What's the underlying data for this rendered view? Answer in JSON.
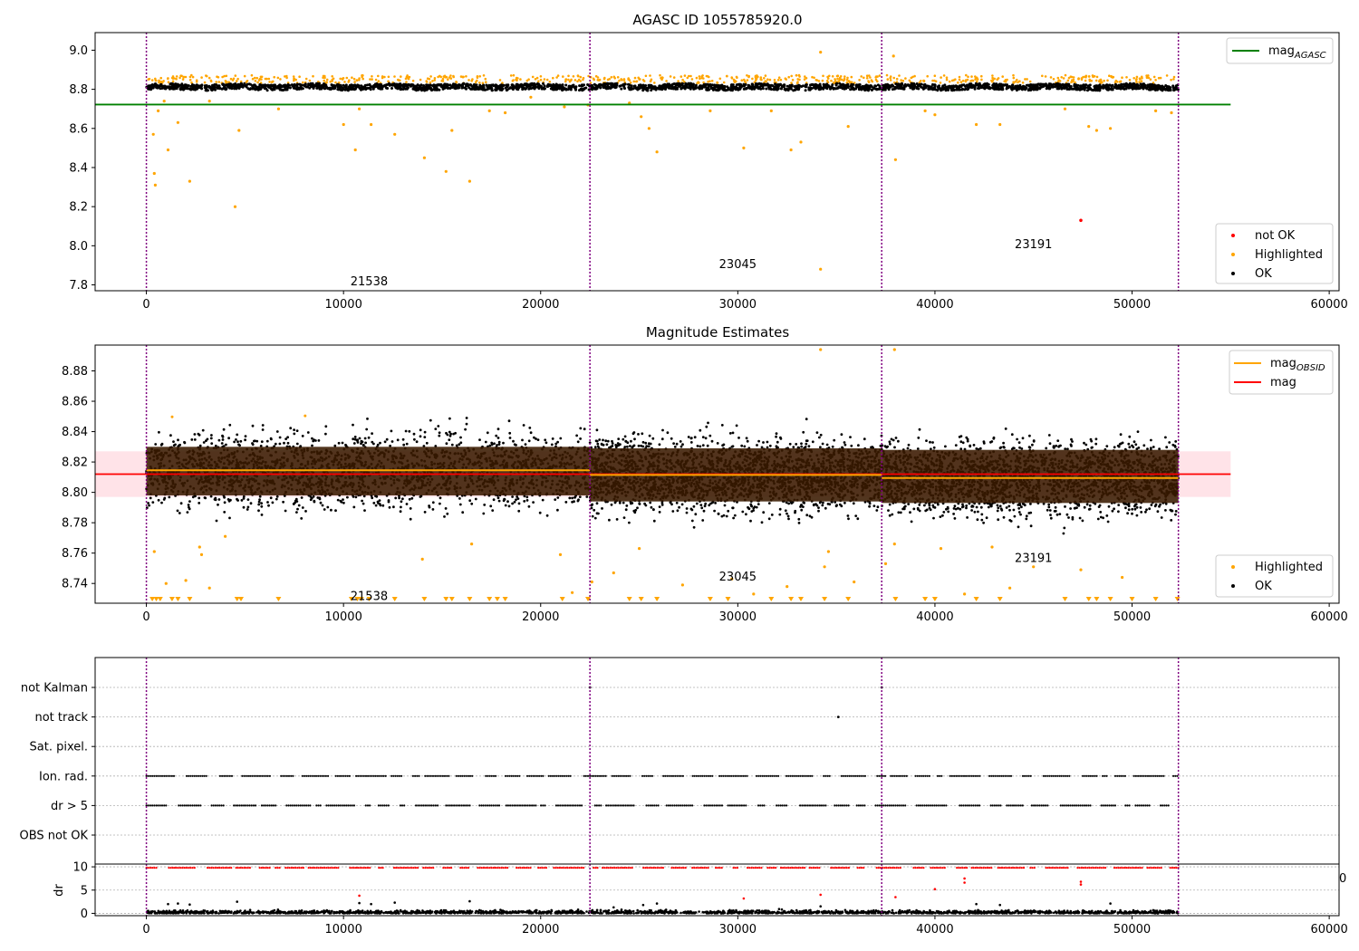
{
  "figure": {
    "title": "AGASC ID 1055785920.0"
  },
  "chart_data": [
    {
      "type": "scatter",
      "title": "AGASC ID 1055785920.0",
      "xlim": [
        -2600,
        60500
      ],
      "ylim": [
        7.77,
        9.09
      ],
      "xticks": [
        0,
        10000,
        20000,
        30000,
        40000,
        50000,
        60000
      ],
      "yticks": [
        7.8,
        8.0,
        8.2,
        8.4,
        8.6,
        8.8,
        9.0
      ],
      "ytick_labels": [
        "7.8",
        "8.0",
        "8.2",
        "8.4",
        "8.6",
        "8.8",
        "9.0"
      ],
      "obsid_boundaries": [
        0,
        22500,
        37300,
        52350
      ],
      "obsid_labels": [
        {
          "text": "21538",
          "x": 11300,
          "y": 7.82
        },
        {
          "text": "23045",
          "x": 30000,
          "y": 7.91
        },
        {
          "text": "23191",
          "x": 45000,
          "y": 8.01
        }
      ],
      "reference_lines": [
        {
          "name": "mag",
          "name_sub": "AGASC",
          "y": 8.722,
          "x": [
            -2600,
            55000
          ],
          "color": "#008000"
        }
      ],
      "ok_band": {
        "center": 8.812,
        "spread": 0.012
      },
      "highlighted_outliers": [
        [
          350,
          8.57
        ],
        [
          400,
          8.37
        ],
        [
          450,
          8.31
        ],
        [
          600,
          8.69
        ],
        [
          900,
          8.74
        ],
        [
          1100,
          8.49
        ],
        [
          1600,
          8.63
        ],
        [
          2200,
          8.33
        ],
        [
          3200,
          8.74
        ],
        [
          4500,
          8.2
        ],
        [
          4700,
          8.59
        ],
        [
          6700,
          8.7
        ],
        [
          10000,
          8.62
        ],
        [
          10600,
          8.49
        ],
        [
          10800,
          8.7
        ],
        [
          11400,
          8.62
        ],
        [
          12600,
          8.57
        ],
        [
          14100,
          8.45
        ],
        [
          15200,
          8.38
        ],
        [
          15500,
          8.59
        ],
        [
          16400,
          8.33
        ],
        [
          17400,
          8.69
        ],
        [
          18200,
          8.68
        ],
        [
          19500,
          8.76
        ],
        [
          21200,
          8.71
        ],
        [
          22400,
          8.72
        ],
        [
          24500,
          8.73
        ],
        [
          25100,
          8.66
        ],
        [
          25500,
          8.6
        ],
        [
          25900,
          8.48
        ],
        [
          28600,
          8.69
        ],
        [
          30300,
          8.5
        ],
        [
          31700,
          8.69
        ],
        [
          32700,
          8.49
        ],
        [
          33200,
          8.53
        ],
        [
          34200,
          7.88
        ],
        [
          34200,
          8.99
        ],
        [
          35600,
          8.61
        ],
        [
          37900,
          8.97
        ],
        [
          38000,
          8.44
        ],
        [
          39500,
          8.69
        ],
        [
          40000,
          8.67
        ],
        [
          42100,
          8.62
        ],
        [
          43300,
          8.62
        ],
        [
          46600,
          8.7
        ],
        [
          47800,
          8.61
        ],
        [
          48200,
          8.59
        ],
        [
          48900,
          8.6
        ],
        [
          51200,
          8.69
        ],
        [
          52000,
          8.68
        ]
      ],
      "not_ok_points": [
        [
          47400,
          8.13
        ]
      ],
      "legends": [
        {
          "position": "top-right",
          "items": [
            {
              "label": "mag",
              "sub": "AGASC",
              "kind": "line",
              "color": "#008000"
            }
          ]
        },
        {
          "position": "lower-right",
          "items": [
            {
              "label": "not OK",
              "kind": "dot",
              "color": "#ff0000"
            },
            {
              "label": "Highlighted",
              "kind": "dot",
              "color": "#ffa500"
            },
            {
              "label": "OK",
              "kind": "dot",
              "color": "#000000"
            }
          ]
        }
      ]
    },
    {
      "type": "scatter",
      "title": "Magnitude Estimates",
      "xlim": [
        -2600,
        60500
      ],
      "ylim": [
        8.727,
        8.897
      ],
      "xticks": [
        0,
        10000,
        20000,
        30000,
        40000,
        50000,
        60000
      ],
      "yticks": [
        8.74,
        8.76,
        8.78,
        8.8,
        8.82,
        8.84,
        8.86,
        8.88
      ],
      "ytick_labels": [
        "8.74",
        "8.76",
        "8.78",
        "8.80",
        "8.82",
        "8.84",
        "8.86",
        "8.88"
      ],
      "obsid_boundaries": [
        0,
        22500,
        37300,
        52350
      ],
      "obsid_labels": [
        {
          "text": "21538",
          "x": 11300,
          "y": 8.732
        },
        {
          "text": "23045",
          "x": 30000,
          "y": 8.745
        },
        {
          "text": "23191",
          "x": 45000,
          "y": 8.757
        }
      ],
      "mag_line": {
        "name": "mag",
        "y": 8.812,
        "x": [
          -2600,
          55000
        ],
        "color": "#ff0000",
        "band": [
          8.797,
          8.827
        ]
      },
      "obsid_segments": [
        {
          "x": [
            0,
            22500
          ],
          "mag_obsid": 8.8145,
          "band": [
            8.798,
            8.83
          ]
        },
        {
          "x": [
            22500,
            37300
          ],
          "mag_obsid": 8.8115,
          "band": [
            8.794,
            8.829
          ]
        },
        {
          "x": [
            37300,
            52350
          ],
          "mag_obsid": 8.8095,
          "band": [
            8.793,
            8.828
          ]
        }
      ],
      "highlighted_outliers": [
        [
          400,
          8.761
        ],
        [
          1000,
          8.74
        ],
        [
          2000,
          8.742
        ],
        [
          2700,
          8.764
        ],
        [
          2800,
          8.759
        ],
        [
          3200,
          8.737
        ],
        [
          4000,
          8.771
        ],
        [
          14000,
          8.756
        ],
        [
          16500,
          8.766
        ],
        [
          21000,
          8.759
        ],
        [
          21600,
          8.734
        ],
        [
          22600,
          8.741
        ],
        [
          23700,
          8.747
        ],
        [
          25000,
          8.763
        ],
        [
          27200,
          8.739
        ],
        [
          29700,
          8.743
        ],
        [
          30800,
          8.733
        ],
        [
          32500,
          8.738
        ],
        [
          34200,
          8.894
        ],
        [
          34400,
          8.751
        ],
        [
          34600,
          8.761
        ],
        [
          35900,
          8.741
        ],
        [
          37500,
          8.753
        ],
        [
          37950,
          8.766
        ],
        [
          37950,
          8.894
        ],
        [
          40300,
          8.763
        ],
        [
          41500,
          8.733
        ],
        [
          42900,
          8.764
        ],
        [
          43800,
          8.737
        ],
        [
          45000,
          8.751
        ],
        [
          47400,
          8.749
        ],
        [
          49500,
          8.744
        ]
      ],
      "clipped_low_x": [
        300,
        500,
        700,
        1300,
        1600,
        2200,
        4600,
        4800,
        6700,
        10400,
        10700,
        10900,
        11300,
        12600,
        14100,
        15200,
        15500,
        16400,
        17400,
        17800,
        18200,
        21100,
        22400,
        24500,
        25100,
        25900,
        28600,
        29500,
        31700,
        32700,
        33200,
        34400,
        35600,
        38000,
        39500,
        40000,
        42100,
        43300,
        46600,
        47800,
        48200,
        48900,
        50000,
        51200,
        52300
      ],
      "legends": [
        {
          "position": "top-right",
          "items": [
            {
              "label": "mag",
              "sub": "OBSID",
              "kind": "line",
              "color": "#ffa500"
            },
            {
              "label": "mag",
              "kind": "line",
              "color": "#ff0000"
            }
          ]
        },
        {
          "position": "lower-right",
          "items": [
            {
              "label": "Highlighted",
              "kind": "dot",
              "color": "#ffa500"
            },
            {
              "label": "OK",
              "kind": "dot",
              "color": "#000000"
            }
          ]
        }
      ]
    },
    {
      "type": "scatter",
      "title": "",
      "xlim": [
        -2600,
        60500
      ],
      "obsid_boundaries": [
        0,
        22500,
        37300,
        52350
      ],
      "flag_rows": [
        "not Kalman",
        "not track",
        "Sat. pixel.",
        "Ion. rad.",
        "dr > 5",
        "OBS not OK"
      ],
      "isolated_flags": [
        {
          "row": "not track",
          "x": 35100
        },
        {
          "row": "not Kalman",
          "x": 22500
        },
        {
          "row": "not Kalman",
          "x": 37300
        }
      ],
      "flagged_row_names": [
        "Ion. rad.",
        "dr > 5"
      ],
      "dr_panel": {
        "ylabel": "dr",
        "ylim": [
          -0.5,
          10.6
        ],
        "yticks": [
          0,
          5,
          10
        ],
        "ytick_labels": [
          "0",
          "5",
          "10"
        ],
        "capped_value": 9.8,
        "red_outliers": [
          [
            10800,
            3.8
          ],
          [
            30300,
            3.2
          ],
          [
            34200,
            4.0
          ],
          [
            38000,
            3.5
          ],
          [
            40000,
            5.2
          ],
          [
            41500,
            7.5
          ],
          [
            41500,
            6.6
          ],
          [
            47400,
            6.8
          ],
          [
            47400,
            6.2
          ]
        ],
        "black_spikes": [
          [
            1100,
            2.0
          ],
          [
            1600,
            2.1
          ],
          [
            2200,
            1.9
          ],
          [
            4600,
            2.5
          ],
          [
            10800,
            2.2
          ],
          [
            11400,
            2.0
          ],
          [
            12600,
            2.3
          ],
          [
            16400,
            2.6
          ],
          [
            23700,
            1.3
          ],
          [
            25200,
            1.8
          ],
          [
            25900,
            2.1
          ],
          [
            34200,
            1.5
          ],
          [
            42100,
            2.0
          ],
          [
            43300,
            1.8
          ],
          [
            48900,
            2.1
          ]
        ]
      },
      "clipped_label": "0"
    }
  ],
  "colors": {
    "ok": "#000000",
    "highlighted": "#ffa500",
    "not_ok": "#ff0000",
    "agasc_line": "#008000",
    "mag_line": "#ff0000",
    "obsid_line": "#ffa500",
    "boundary": "#800080",
    "grid": "#b0b0b0",
    "mag_band": "#ffc0cb",
    "obsid_band": "#3a1a00"
  }
}
